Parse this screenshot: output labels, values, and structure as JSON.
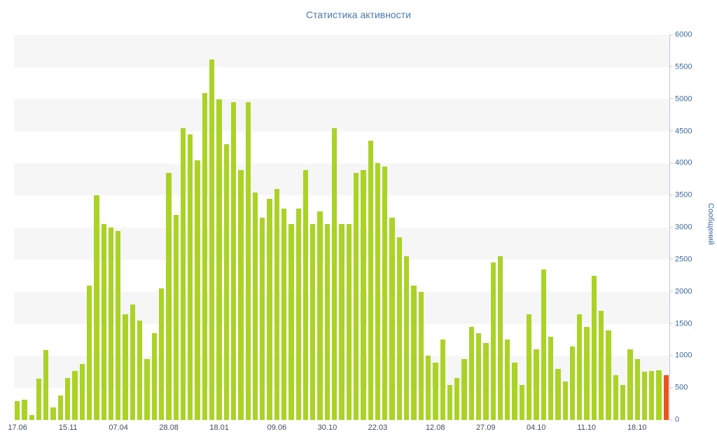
{
  "page": {
    "title": "Статистика активности"
  },
  "chart_data": {
    "type": "bar",
    "title": "Статистика активности",
    "xlabel": "",
    "ylabel": "Сообщений",
    "ylim": [
      0,
      6000
    ],
    "ytick_step": 500,
    "yticks": [
      0,
      500,
      1000,
      1500,
      2000,
      2500,
      3000,
      3500,
      4000,
      4500,
      5000,
      5500,
      6000
    ],
    "x_tick_labels": [
      "17.06",
      "15.11",
      "07.04",
      "28.08",
      "18.01",
      "09.06",
      "30.10",
      "22.03",
      "12.08",
      "27.09",
      "04.10",
      "11.10",
      "18.10"
    ],
    "x_tick_indices": [
      0,
      7,
      14,
      21,
      28,
      36,
      43,
      50,
      58,
      65,
      72,
      79,
      86
    ],
    "n_bars": 91,
    "values": [
      300,
      320,
      80,
      640,
      1090,
      200,
      380,
      650,
      760,
      870,
      2100,
      3500,
      3050,
      3000,
      2950,
      1650,
      1800,
      1550,
      950,
      1350,
      2050,
      3850,
      3200,
      4550,
      4450,
      4050,
      5100,
      5620,
      5000,
      4300,
      4950,
      3900,
      4950,
      3550,
      3150,
      3450,
      3600,
      3300,
      3050,
      3300,
      3900,
      3050,
      3250,
      3050,
      4550,
      3050,
      3050,
      3850,
      3900,
      4350,
      4000,
      3950,
      3150,
      2850,
      2550,
      2100,
      2000,
      1000,
      900,
      1250,
      550,
      650,
      950,
      1450,
      1350,
      1200,
      2450,
      2550,
      1250,
      900,
      550,
      1650,
      1100,
      2350,
      1300,
      800,
      600,
      1150,
      1650,
      1450,
      2250,
      1700,
      1400,
      700,
      550,
      1100,
      950,
      750,
      760,
      770,
      700
    ],
    "bar_color": "#aad326",
    "highlight_color": "#e8551c",
    "highlight_index": 90,
    "grid": "horizontal-bands",
    "band_colors": [
      "#f6f6f6",
      "#ffffff"
    ],
    "legend": "none",
    "tick_label_color": "#3a6aa3",
    "x_label_color": "#3c4c62",
    "title_color": "#4a78ab"
  }
}
